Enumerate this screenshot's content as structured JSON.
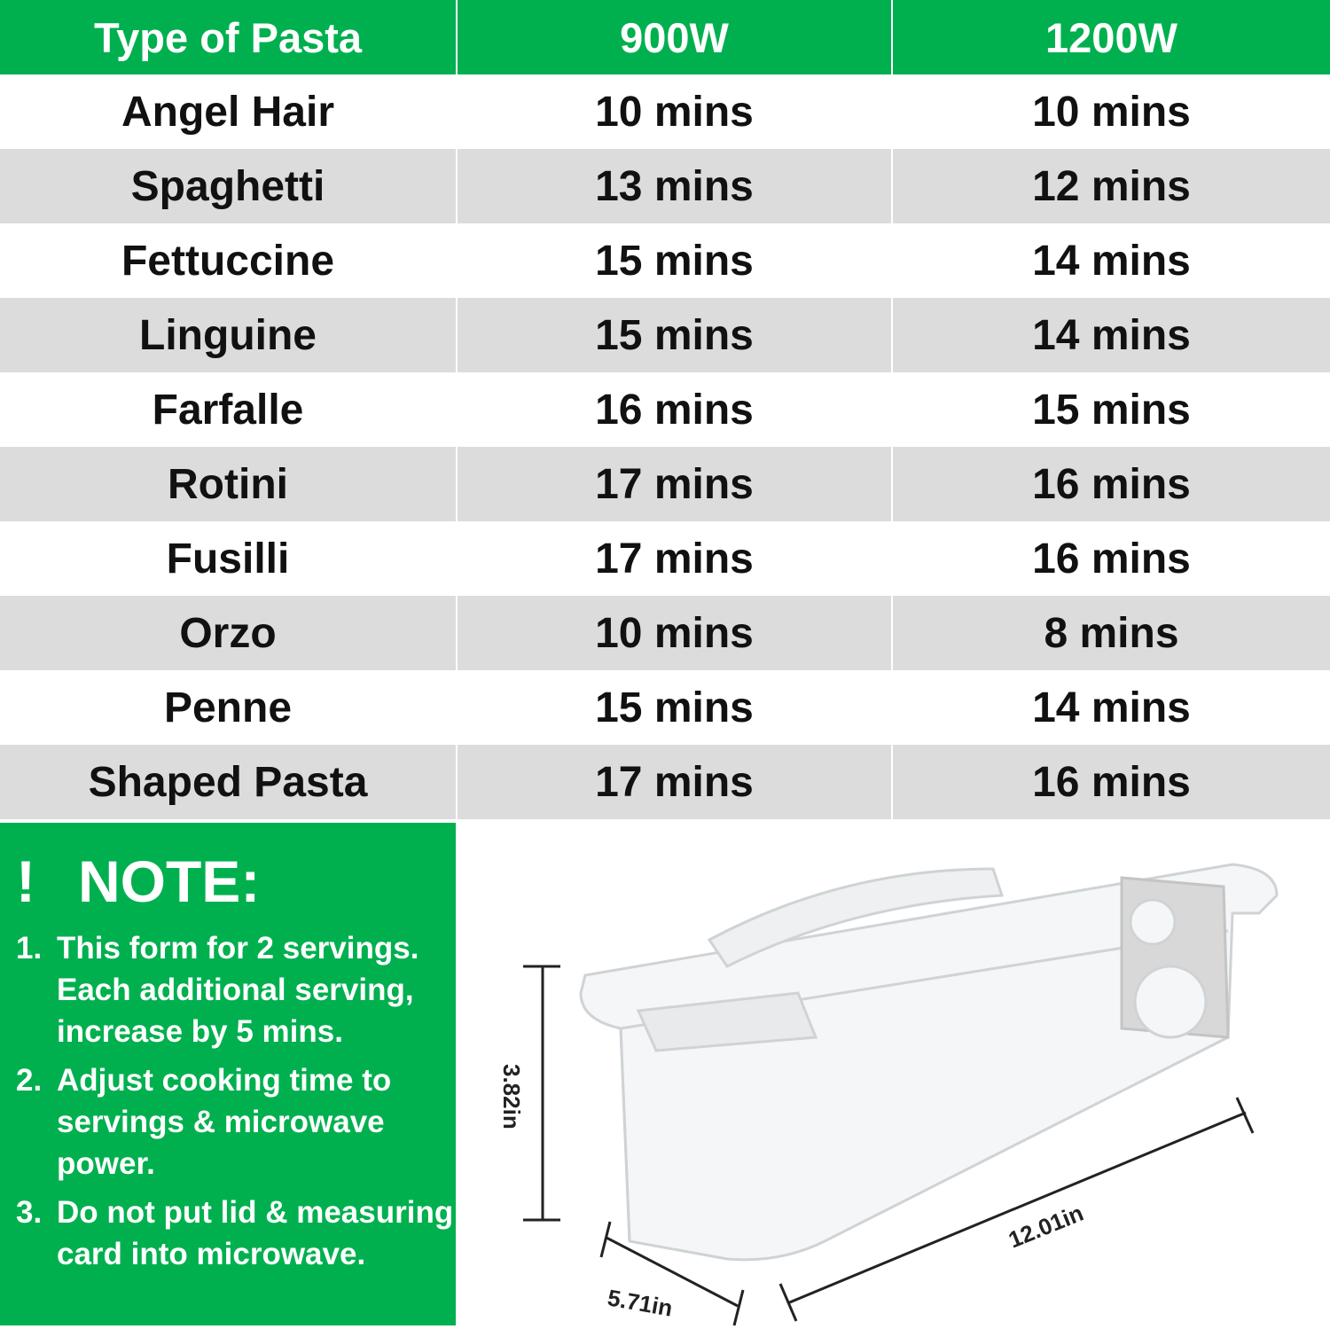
{
  "table": {
    "headers": [
      "Type of Pasta",
      "900W",
      "1200W"
    ],
    "rows": [
      [
        "Angel Hair",
        "10 mins",
        "10 mins"
      ],
      [
        "Spaghetti",
        "13 mins",
        "12 mins"
      ],
      [
        "Fettuccine",
        "15 mins",
        "14 mins"
      ],
      [
        "Linguine",
        "15 mins",
        "14 mins"
      ],
      [
        "Farfalle",
        "16 mins",
        "15 mins"
      ],
      [
        "Rotini",
        "17 mins",
        "16 mins"
      ],
      [
        "Fusilli",
        "17 mins",
        "16 mins"
      ],
      [
        "Orzo",
        "10 mins",
        "8 mins"
      ],
      [
        "Penne",
        "15 mins",
        "14 mins"
      ],
      [
        "Shaped Pasta",
        "17 mins",
        "16 mins"
      ]
    ]
  },
  "note": {
    "icon": "!",
    "title": "NOTE:",
    "items": [
      {
        "num": "1.",
        "text": "This form for 2 servings. Each additional serving, increase by 5 mins."
      },
      {
        "num": "2.",
        "text": "Adjust cooking time to servings & microwave power."
      },
      {
        "num": "3.",
        "text": "Do not put lid & measuring card into microwave."
      }
    ]
  },
  "product": {
    "height_label": "3.82in",
    "width_label": "5.71in",
    "length_label": "12.01in"
  },
  "colors": {
    "accent_green": "#00b04f",
    "row_gray": "#dcdcdc"
  }
}
